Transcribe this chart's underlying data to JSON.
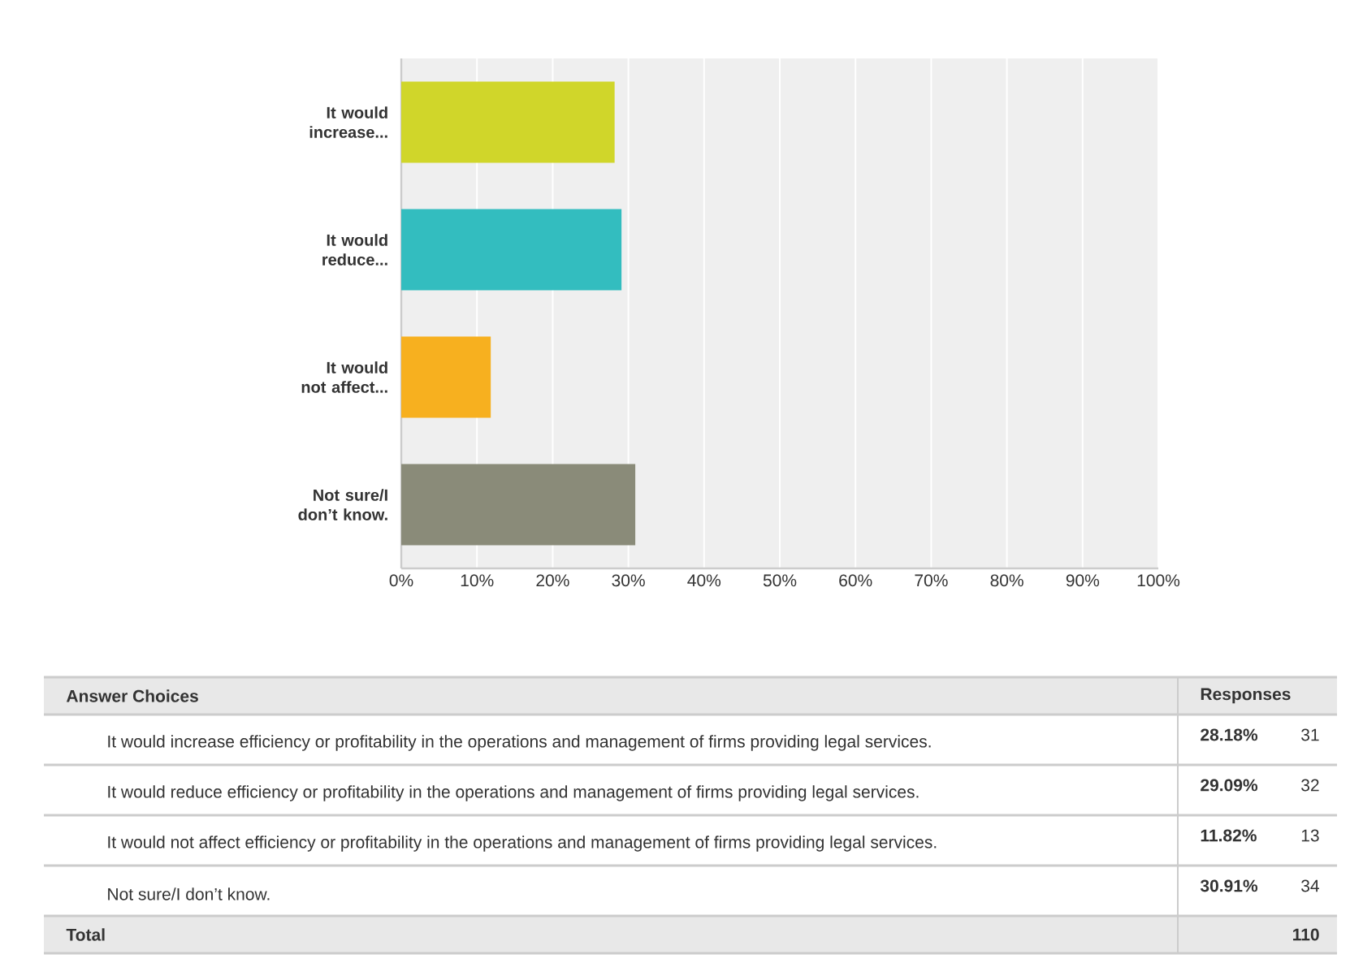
{
  "chart_data": {
    "type": "bar",
    "orientation": "horizontal",
    "categories": [
      "It would increase...",
      "It would reduce...",
      "It would not affect...",
      "Not sure/I don’t know."
    ],
    "values": [
      28.18,
      29.09,
      11.82,
      30.91
    ],
    "colors": [
      "#d0d62a",
      "#33bdbf",
      "#f7b01f",
      "#8a8b79"
    ],
    "xlim": [
      0,
      100
    ],
    "xticks": [
      {
        "value": 0,
        "label": "0%"
      },
      {
        "value": 10,
        "label": "10%"
      },
      {
        "value": 20,
        "label": "20%"
      },
      {
        "value": 30,
        "label": "30%"
      },
      {
        "value": 40,
        "label": "40%"
      },
      {
        "value": 50,
        "label": "50%"
      },
      {
        "value": 60,
        "label": "60%"
      },
      {
        "value": 70,
        "label": "70%"
      },
      {
        "value": 80,
        "label": "80%"
      },
      {
        "value": 90,
        "label": "90%"
      },
      {
        "value": 100,
        "label": "100%"
      }
    ],
    "grid": "x",
    "annotations": [
      "Answer Choices",
      "Responses",
      "It would increase efficiency or profitability in the operations and management of firms providing legal services.",
      "It would reduce efficiency or profitability in the operations and management of firms providing legal services.",
      "It would not affect efficiency or profitability in the operations and management of firms providing legal services.",
      "Not sure/I don’t know.",
      "31",
      "32",
      "13",
      "34",
      "Total",
      "110",
      "28.18%",
      "29.09%",
      "11.82%",
      "30.91%"
    ]
  }
}
